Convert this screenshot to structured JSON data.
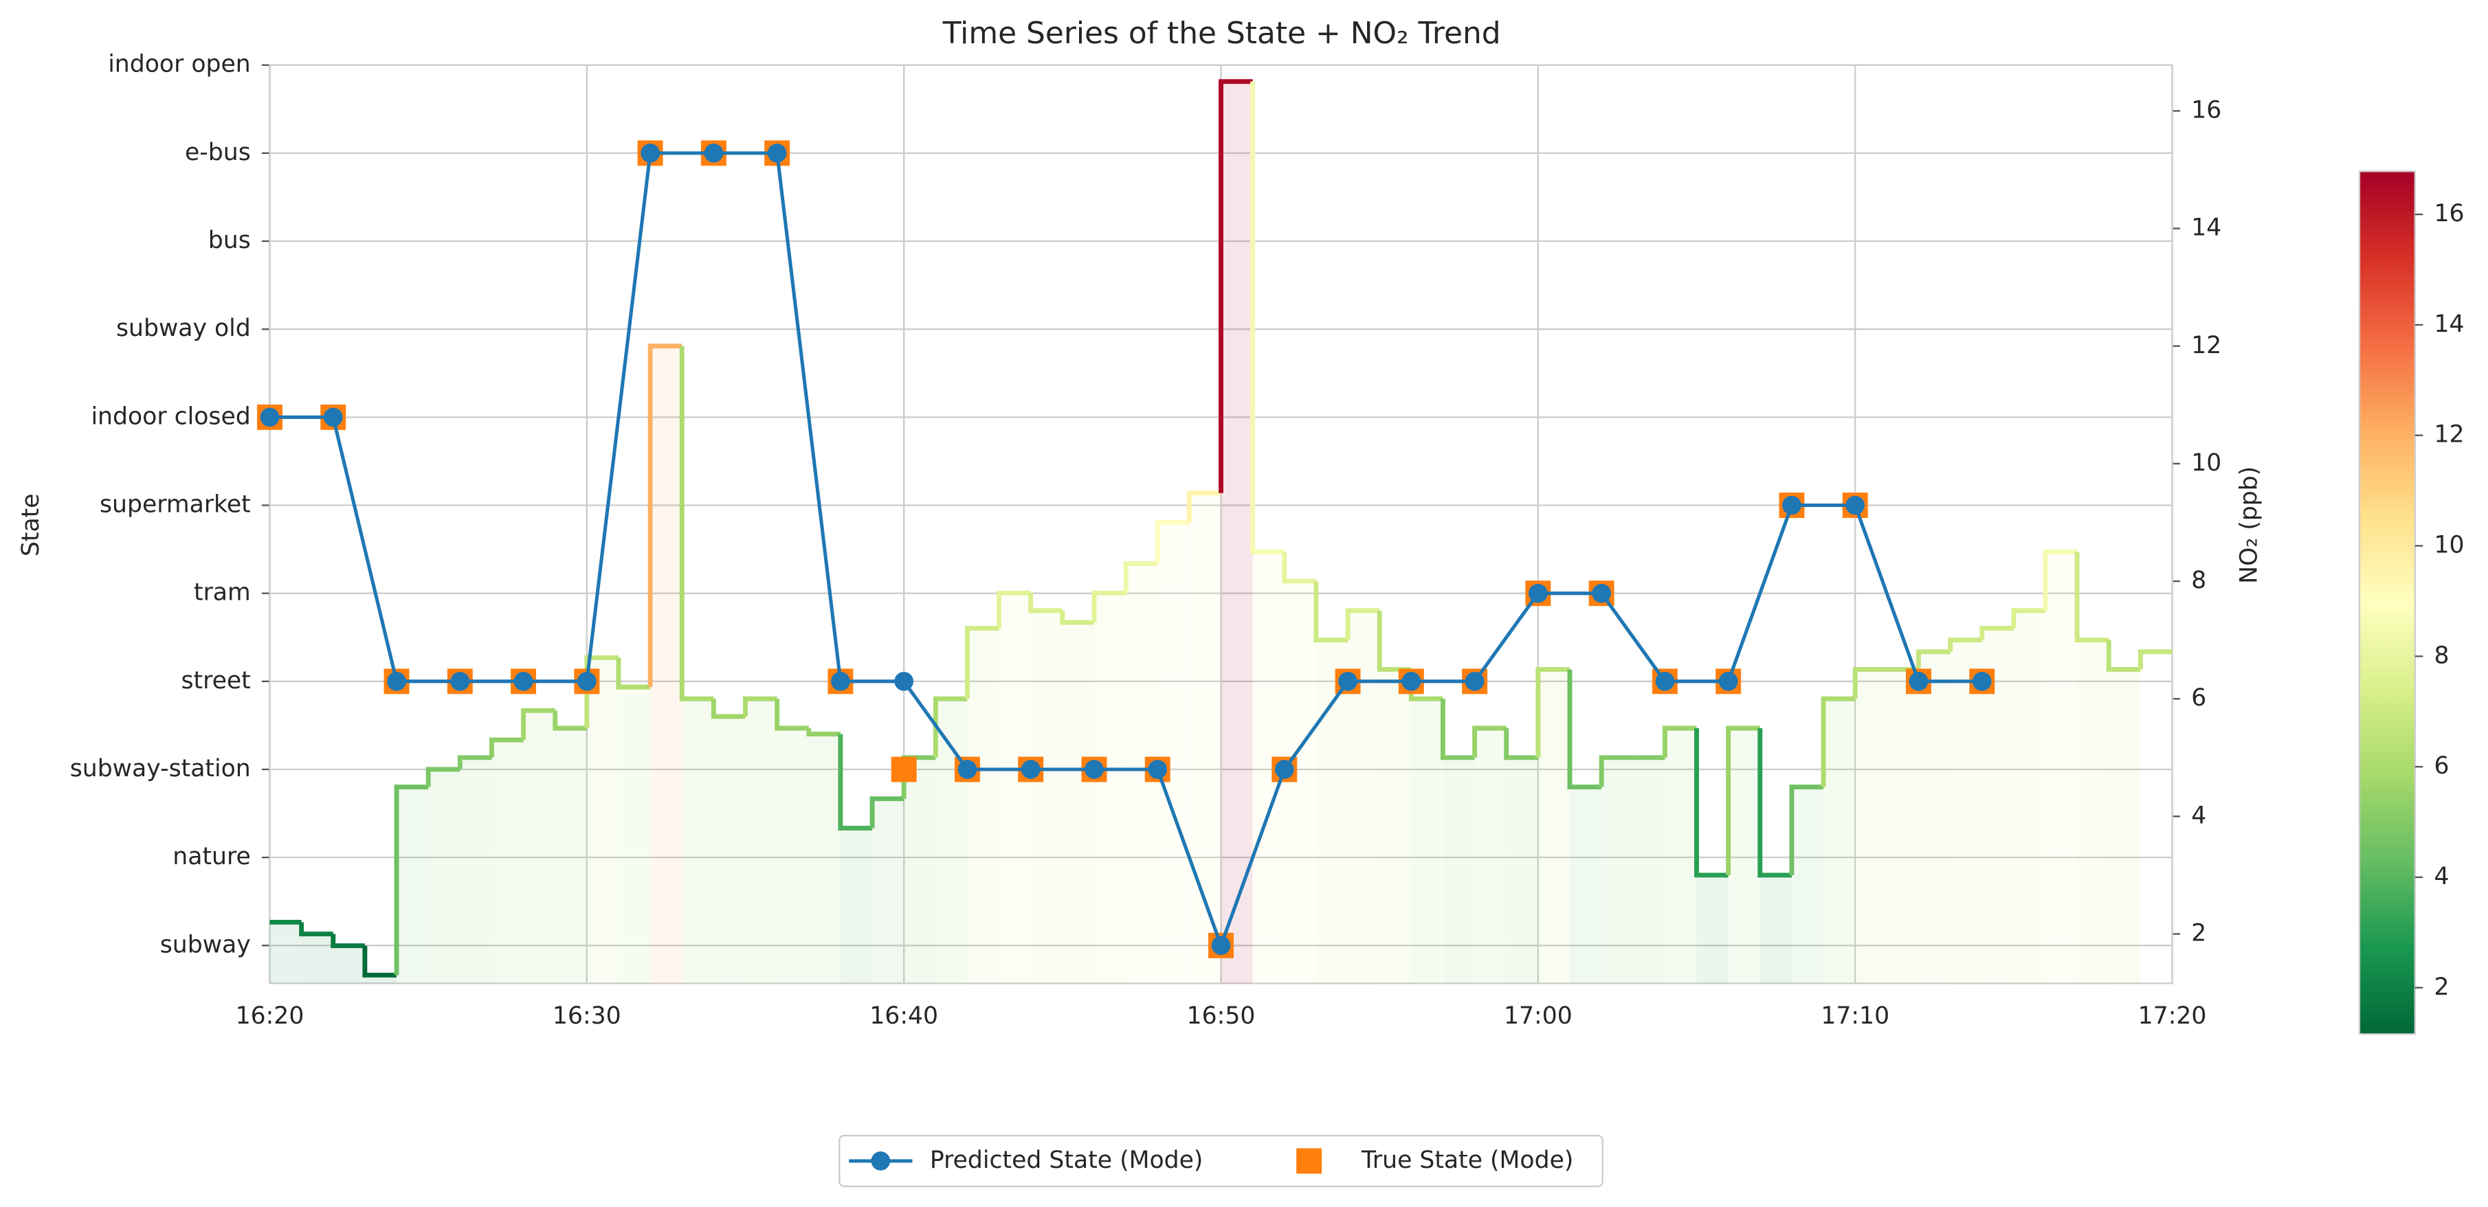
{
  "chart_data": {
    "type": "state-trend",
    "title": "Time Series of the State + NO₂ Trend",
    "y_label": "State",
    "y2_label": "NO₂ (ppb)",
    "categories_y": [
      "subway",
      "nature",
      "subway-station",
      "street",
      "tram",
      "supermarket",
      "indoor closed",
      "subway old",
      "bus",
      "e-bus",
      "indoor open"
    ],
    "xlim": [
      "16:20",
      "17:20"
    ],
    "xticks": [
      "16:20",
      "16:30",
      "16:40",
      "16:50",
      "17:00",
      "17:10",
      "17:20"
    ],
    "grid": true,
    "legend": "bottom",
    "state_series": [
      {
        "name": "Predicted State (Mode)",
        "color": "#1f77b4",
        "marker": "circle",
        "x": [
          "16:20",
          "16:22",
          "16:24",
          "16:26",
          "16:28",
          "16:30",
          "16:32",
          "16:34",
          "16:36",
          "16:38",
          "16:40",
          "16:42",
          "16:44",
          "16:46",
          "16:48",
          "16:50",
          "16:52",
          "16:54",
          "16:56",
          "16:58",
          "17:00",
          "17:02",
          "17:04",
          "17:06",
          "17:08",
          "17:10",
          "17:12",
          "17:14"
        ],
        "values": [
          "indoor closed",
          "indoor closed",
          "street",
          "street",
          "street",
          "street",
          "e-bus",
          "e-bus",
          "e-bus",
          "street",
          "street",
          "subway-station",
          "subway-station",
          "subway-station",
          "subway-station",
          "subway",
          "subway-station",
          "street",
          "street",
          "street",
          "tram",
          "tram",
          "street",
          "street",
          "supermarket",
          "supermarket",
          "street",
          "street"
        ]
      },
      {
        "name": "True State (Mode)",
        "color": "#ff7f0e",
        "marker": "square",
        "x": [
          "16:20",
          "16:22",
          "16:24",
          "16:26",
          "16:28",
          "16:30",
          "16:32",
          "16:34",
          "16:36",
          "16:38",
          "16:40",
          "16:42",
          "16:44",
          "16:46",
          "16:48",
          "16:50",
          "16:52",
          "16:54",
          "16:56",
          "16:58",
          "17:00",
          "17:02",
          "17:04",
          "17:06",
          "17:08",
          "17:10",
          "17:12",
          "17:14"
        ],
        "values": [
          "indoor closed",
          "indoor closed",
          "street",
          "street",
          "street",
          "street",
          "e-bus",
          "e-bus",
          "e-bus",
          "street",
          "subway-station",
          "subway-station",
          "subway-station",
          "subway-station",
          "subway-station",
          "subway",
          "subway-station",
          "street",
          "street",
          "street",
          "tram",
          "tram",
          "street",
          "street",
          "supermarket",
          "supermarket",
          "street",
          "street"
        ]
      }
    ],
    "no2": {
      "axis": "y2",
      "x": [
        "16:20",
        "16:21",
        "16:22",
        "16:23",
        "16:24",
        "16:25",
        "16:26",
        "16:27",
        "16:28",
        "16:29",
        "16:30",
        "16:31",
        "16:32",
        "16:33",
        "16:34",
        "16:35",
        "16:36",
        "16:37",
        "16:38",
        "16:39",
        "16:40",
        "16:41",
        "16:42",
        "16:43",
        "16:44",
        "16:45",
        "16:46",
        "16:47",
        "16:48",
        "16:49",
        "16:50",
        "16:51",
        "16:52",
        "16:53",
        "16:54",
        "16:55",
        "16:56",
        "16:57",
        "16:58",
        "16:59",
        "17:00",
        "17:01",
        "17:02",
        "17:03",
        "17:04",
        "17:05",
        "17:06",
        "17:07",
        "17:08",
        "17:09",
        "17:10",
        "17:11",
        "17:12",
        "17:13",
        "17:14",
        "17:15",
        "17:16",
        "17:17",
        "17:18",
        "17:19"
      ],
      "values": [
        2.2,
        2.0,
        1.8,
        1.3,
        4.5,
        4.8,
        5.0,
        5.3,
        5.8,
        5.5,
        6.7,
        6.2,
        12,
        6.0,
        5.7,
        6.0,
        5.5,
        5.4,
        3.8,
        4.3,
        5.0,
        6.0,
        7.2,
        7.8,
        7.5,
        7.3,
        7.8,
        8.3,
        9.0,
        9.5,
        16.5,
        8.5,
        8.0,
        7.0,
        7.5,
        6.5,
        6.0,
        5.0,
        5.5,
        5.0,
        6.5,
        4.5,
        5.0,
        5.0,
        5.5,
        3.0,
        5.5,
        3.0,
        4.5,
        6.0,
        6.5,
        6.5,
        6.8,
        7.0,
        7.2,
        7.5,
        8.5,
        7.0,
        6.5,
        6.8
      ]
    },
    "y2lim": [
      1.16,
      16.78
    ],
    "y2ticks": [
      2,
      4,
      6,
      8,
      10,
      12,
      14,
      16
    ],
    "colormap": [
      "#006837",
      "#1a9850",
      "#66bd63",
      "#a6d96a",
      "#d9ef8b",
      "#ffffbf",
      "#fee08b",
      "#fdae61",
      "#f46d43",
      "#d73027",
      "#a50026"
    ]
  }
}
